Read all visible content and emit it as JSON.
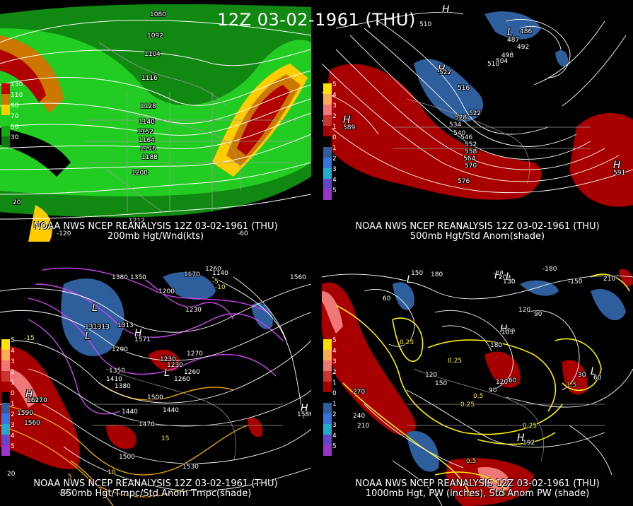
{
  "title": "12Z 03-02-1961 (THU)",
  "colors": {
    "background": "#000000",
    "contour_white": "#ffffff",
    "contour_yellow": "#ffee00",
    "contour_magenta": "#cc44ee",
    "anom_red": "#a80000",
    "anom_blue": "#2e5e9c",
    "wind_green_light": "#22cc22",
    "wind_green_dark": "#118811",
    "wind_yellow": "#ffcc00",
    "wind_orange": "#cc7700",
    "wind_red": "#b00000"
  },
  "panels": [
    {
      "id": "p200",
      "title_line1": "NOAA NWS NCEP REANALYSIS 12Z 03-02-1961 (THU)",
      "title_line2": "200mb Hgt/Wnd(kts)",
      "scale": [
        {
          "label": "130",
          "color": "#c80000"
        },
        {
          "label": "110",
          "color": "#cc7700"
        },
        {
          "label": "90",
          "color": "#ffcc00"
        },
        {
          "label": "70",
          "color": "#22cc22"
        },
        {
          "label": "50",
          "color": "#11aa11"
        },
        {
          "label": "30",
          "color": "#117711"
        }
      ],
      "labels": [
        "1080",
        "1092",
        "1104",
        "1116",
        "1128",
        "1140",
        "1152",
        "1164",
        "1176",
        "1188",
        "1200",
        "1212",
        "20",
        "-120",
        "-60"
      ]
    },
    {
      "id": "p500",
      "title_line1": "NOAA NWS NCEP REANALYSIS 12Z 03-02-1961 (THU)",
      "title_line2": "500mb Hgt/Std Anom(shade)",
      "scale": [
        {
          "label": "5",
          "color": "#ffe000"
        },
        {
          "label": "4",
          "color": "#ffaa55"
        },
        {
          "label": "3",
          "color": "#ee7777"
        },
        {
          "label": "2",
          "color": "#cc3333"
        },
        {
          "label": "1",
          "color": "#a80000"
        },
        {
          "label": "0",
          "color": "#000000"
        },
        {
          "label": "1",
          "color": "#2e5e9c"
        },
        {
          "label": "2",
          "color": "#3377dd"
        },
        {
          "label": "3",
          "color": "#22aacc"
        },
        {
          "label": "4",
          "color": "#6644cc"
        },
        {
          "label": "5",
          "color": "#9933cc"
        }
      ],
      "labels": [
        "510",
        "486",
        "492",
        "498",
        "504",
        "510",
        "516",
        "522",
        "528",
        "534",
        "540",
        "546",
        "552",
        "558",
        "564",
        "570",
        "576",
        "H",
        "589",
        "H",
        "591",
        "L",
        "487",
        "H",
        "522",
        "H"
      ]
    },
    {
      "id": "p850",
      "title_line1": "NOAA NWS NCEP REANALYSIS 12Z 03-02-1961 (THU)",
      "title_line2": "850mb Hgt/Tmpc/Std Anom Tmpc(shade)",
      "scale": [
        {
          "label": "5",
          "color": "#ffe000"
        },
        {
          "label": "4",
          "color": "#ffaa55"
        },
        {
          "label": "3",
          "color": "#ee7777"
        },
        {
          "label": "2",
          "color": "#cc3333"
        },
        {
          "label": "1",
          "color": "#a80000"
        },
        {
          "label": "0",
          "color": "#000000"
        },
        {
          "label": "1",
          "color": "#2e5e9c"
        },
        {
          "label": "2",
          "color": "#3377dd"
        },
        {
          "label": "3",
          "color": "#22aacc"
        },
        {
          "label": "4",
          "color": "#6644cc"
        },
        {
          "label": "5",
          "color": "#9933cc"
        }
      ],
      "labels": [
        "1380",
        "1350",
        "1260",
        "1320",
        "1230",
        "1200",
        "1170",
        "1140",
        "1290",
        "1350",
        "1410",
        "1380",
        "1440",
        "1470",
        "1500",
        "1530",
        "1560",
        "1590",
        "1620",
        "1560",
        "1440",
        "1500",
        "1230",
        "1260",
        "1270",
        "1230",
        "15",
        "10",
        "5",
        "-5",
        "-10",
        "-15",
        "L",
        "1313",
        "L",
        "1313",
        "H",
        "1571",
        "H",
        "1586",
        "H",
        "1627",
        "L",
        "1260",
        "20",
        "-120"
      ]
    },
    {
      "id": "p1000",
      "title_line1": "NOAA NWS NCEP REANALYSIS 12Z 03-02-1961 (THU)",
      "title_line2": "1000mb Hgt, PW (inches), Std Anom PW (shade)",
      "scale": [
        {
          "label": "5",
          "color": "#ffe000"
        },
        {
          "label": "4",
          "color": "#ffaa55"
        },
        {
          "label": "3",
          "color": "#ee7777"
        },
        {
          "label": "2",
          "color": "#cc3333"
        },
        {
          "label": "1",
          "color": "#a80000"
        },
        {
          "label": "0",
          "color": "#000000"
        },
        {
          "label": "1",
          "color": "#2e5e9c"
        },
        {
          "label": "2",
          "color": "#3377dd"
        },
        {
          "label": "3",
          "color": "#22aacc"
        },
        {
          "label": "4",
          "color": "#6644cc"
        },
        {
          "label": "5",
          "color": "#9933cc"
        }
      ],
      "labels": [
        "150",
        "180",
        "210",
        "-30",
        "-180",
        "-150",
        "60",
        "90",
        "120",
        "150",
        "180",
        "120",
        "150",
        "240",
        "210",
        "270",
        "120",
        "90",
        "60",
        "30",
        "0.25",
        "0.25",
        "0.25",
        "0.25",
        "0.5",
        "0.5",
        "0.5",
        "1.5",
        "H",
        "209",
        "L",
        "113",
        "H",
        "103",
        "L",
        "30",
        "H",
        "192",
        "L",
        "60"
      ]
    }
  ]
}
